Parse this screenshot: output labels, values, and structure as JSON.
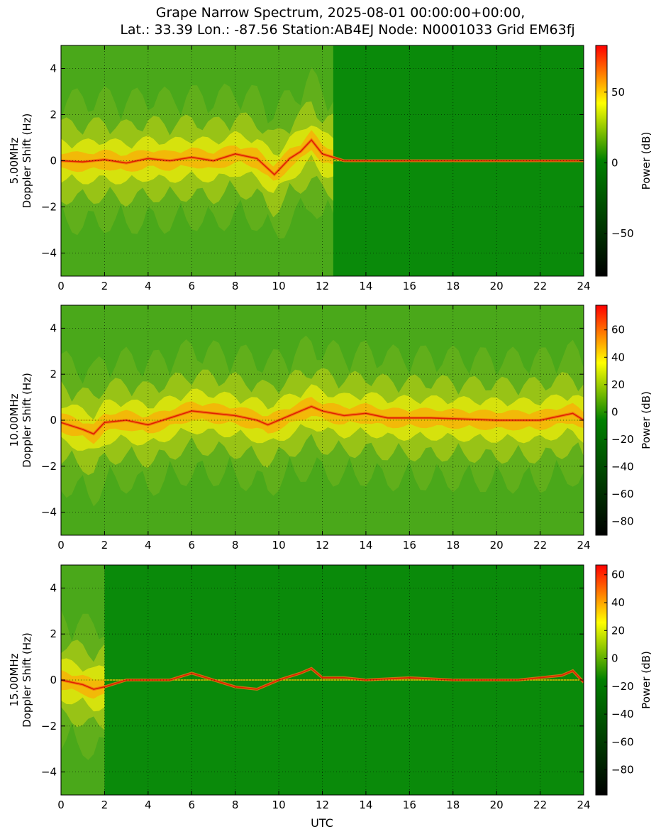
{
  "chart_data": {
    "type": "heatmap",
    "title_line1": "Grape Narrow Spectrum, 2025-08-01 00:00:00+00:00,",
    "title_line2": "Lat.: 33.39 Lon.: -87.56 Station:AB4EJ Node: N0001033 Grid EM63fj",
    "xlabel": "UTC",
    "xlim": [
      0,
      24
    ],
    "xticks": [
      0,
      2,
      4,
      6,
      8,
      10,
      12,
      14,
      16,
      18,
      20,
      22,
      24
    ],
    "colorbar_label": "Power (dB)",
    "colormap": [
      "#000000",
      "#008000",
      "#ffff00",
      "#ff0000"
    ],
    "grid": true,
    "panels": [
      {
        "frequency_label": "5.00MHz",
        "ylabel": "Doppler Shift (Hz)",
        "ylim": [
          -5,
          5
        ],
        "yticks": [
          -4,
          -2,
          0,
          2,
          4
        ],
        "color_range": [
          -80,
          83
        ],
        "colorbar_ticks": [
          -50,
          0,
          50
        ],
        "propagation_strong_hours": [
          0,
          12.5
        ],
        "carrier_track": [
          [
            0,
            0
          ],
          [
            1,
            -0.05
          ],
          [
            2,
            0.05
          ],
          [
            3,
            -0.1
          ],
          [
            4,
            0.1
          ],
          [
            5,
            0
          ],
          [
            6,
            0.15
          ],
          [
            7,
            0
          ],
          [
            8,
            0.3
          ],
          [
            9,
            0.1
          ],
          [
            9.8,
            -0.6
          ],
          [
            10.5,
            0.1
          ],
          [
            11,
            0.4
          ],
          [
            11.5,
            0.9
          ],
          [
            12,
            0.3
          ],
          [
            13,
            0
          ],
          [
            24,
            0
          ]
        ]
      },
      {
        "frequency_label": "10.00MHz",
        "ylabel": "Doppler Shift (Hz)",
        "ylim": [
          -5,
          5
        ],
        "yticks": [
          -4,
          -2,
          0,
          2,
          4
        ],
        "color_range": [
          -90,
          78
        ],
        "colorbar_ticks": [
          -80,
          -60,
          -40,
          -20,
          0,
          20,
          40,
          60
        ],
        "propagation_strong_hours": [
          0,
          24
        ],
        "carrier_track": [
          [
            0,
            -0.1
          ],
          [
            1,
            -0.4
          ],
          [
            1.5,
            -0.6
          ],
          [
            2,
            -0.1
          ],
          [
            3,
            0
          ],
          [
            4,
            -0.2
          ],
          [
            5,
            0.1
          ],
          [
            6,
            0.4
          ],
          [
            7,
            0.3
          ],
          [
            8,
            0.2
          ],
          [
            9,
            0
          ],
          [
            9.5,
            -0.2
          ],
          [
            10,
            0
          ],
          [
            11,
            0.4
          ],
          [
            11.5,
            0.6
          ],
          [
            12,
            0.4
          ],
          [
            13,
            0.2
          ],
          [
            14,
            0.3
          ],
          [
            15,
            0.1
          ],
          [
            17,
            0.1
          ],
          [
            20,
            0
          ],
          [
            22,
            0
          ],
          [
            23.5,
            0.3
          ],
          [
            24,
            0
          ]
        ]
      },
      {
        "frequency_label": "15.00MHz",
        "ylabel": "Doppler Shift (Hz)",
        "ylim": [
          -5,
          5
        ],
        "yticks": [
          -4,
          -2,
          0,
          2,
          4
        ],
        "color_range": [
          -98,
          67
        ],
        "colorbar_ticks": [
          -80,
          -60,
          -40,
          -20,
          0,
          20,
          40,
          60
        ],
        "propagation_strong_hours": [
          0,
          2
        ],
        "carrier_track": [
          [
            0,
            0
          ],
          [
            1,
            -0.2
          ],
          [
            1.5,
            -0.4
          ],
          [
            2,
            -0.3
          ],
          [
            3,
            0
          ],
          [
            5,
            0
          ],
          [
            6,
            0.3
          ],
          [
            7,
            0
          ],
          [
            8,
            -0.3
          ],
          [
            9,
            -0.4
          ],
          [
            10,
            0
          ],
          [
            11,
            0.3
          ],
          [
            11.5,
            0.5
          ],
          [
            12,
            0.1
          ],
          [
            13,
            0.1
          ],
          [
            14,
            0
          ],
          [
            16,
            0.1
          ],
          [
            18,
            0
          ],
          [
            21,
            0
          ],
          [
            23,
            0.2
          ],
          [
            23.5,
            0.4
          ],
          [
            24,
            -0.1
          ]
        ]
      }
    ]
  }
}
